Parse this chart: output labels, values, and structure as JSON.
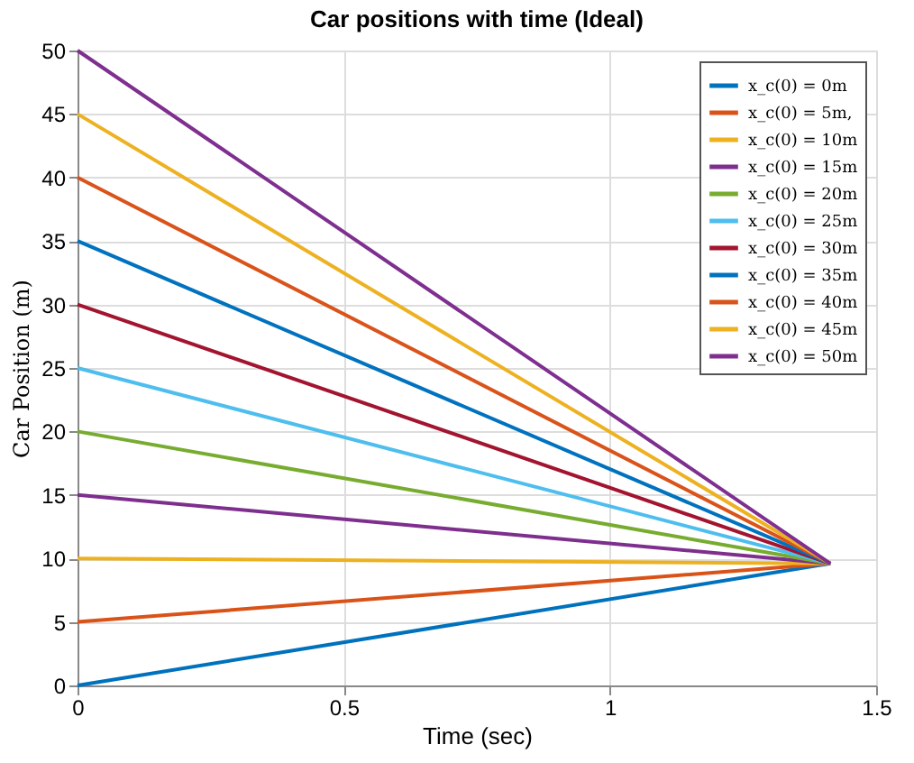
{
  "chart_data": {
    "type": "line",
    "title": "Car positions with time (Ideal)",
    "xlabel": "Time (sec)",
    "ylabel": "Car Position (m)",
    "xlim": [
      0,
      1.5
    ],
    "xticks": [
      0,
      0.5,
      1,
      1.5
    ],
    "ylim": [
      0,
      50
    ],
    "yticks": [
      0,
      5,
      10,
      15,
      20,
      25,
      30,
      35,
      40,
      45,
      50
    ],
    "grid": true,
    "legend": "top right",
    "marker": "none",
    "line_style": "solid",
    "x": [
      0,
      1.414
    ],
    "series": [
      {
        "name": "x_c(0) = 0m",
        "color": "#0072bd",
        "values": [
          0,
          9.6
        ]
      },
      {
        "name": "x_c(0) = 5m,",
        "color": "#d95319",
        "values": [
          5,
          9.6
        ]
      },
      {
        "name": "x_c(0) = 10m",
        "color": "#edb120",
        "values": [
          10,
          9.6
        ]
      },
      {
        "name": "x_c(0) = 15m",
        "color": "#7e2f8e",
        "values": [
          15,
          9.6
        ]
      },
      {
        "name": "x_c(0) = 20m",
        "color": "#77ac30",
        "values": [
          20,
          9.6
        ]
      },
      {
        "name": "x_c(0) = 25m",
        "color": "#4dbeee",
        "values": [
          25,
          9.6
        ]
      },
      {
        "name": "x_c(0) = 30m",
        "color": "#a2142f",
        "values": [
          30,
          9.6
        ]
      },
      {
        "name": "x_c(0) = 35m",
        "color": "#0072be",
        "values": [
          35,
          9.6
        ]
      },
      {
        "name": "x_c(0) = 40m",
        "color": "#d9531a",
        "values": [
          40,
          9.6
        ]
      },
      {
        "name": "x_c(0) = 45m",
        "color": "#edb121",
        "values": [
          45,
          9.6
        ]
      },
      {
        "name": "x_c(0) = 50m",
        "color": "#7e2f8f",
        "values": [
          50,
          9.6
        ]
      }
    ]
  }
}
